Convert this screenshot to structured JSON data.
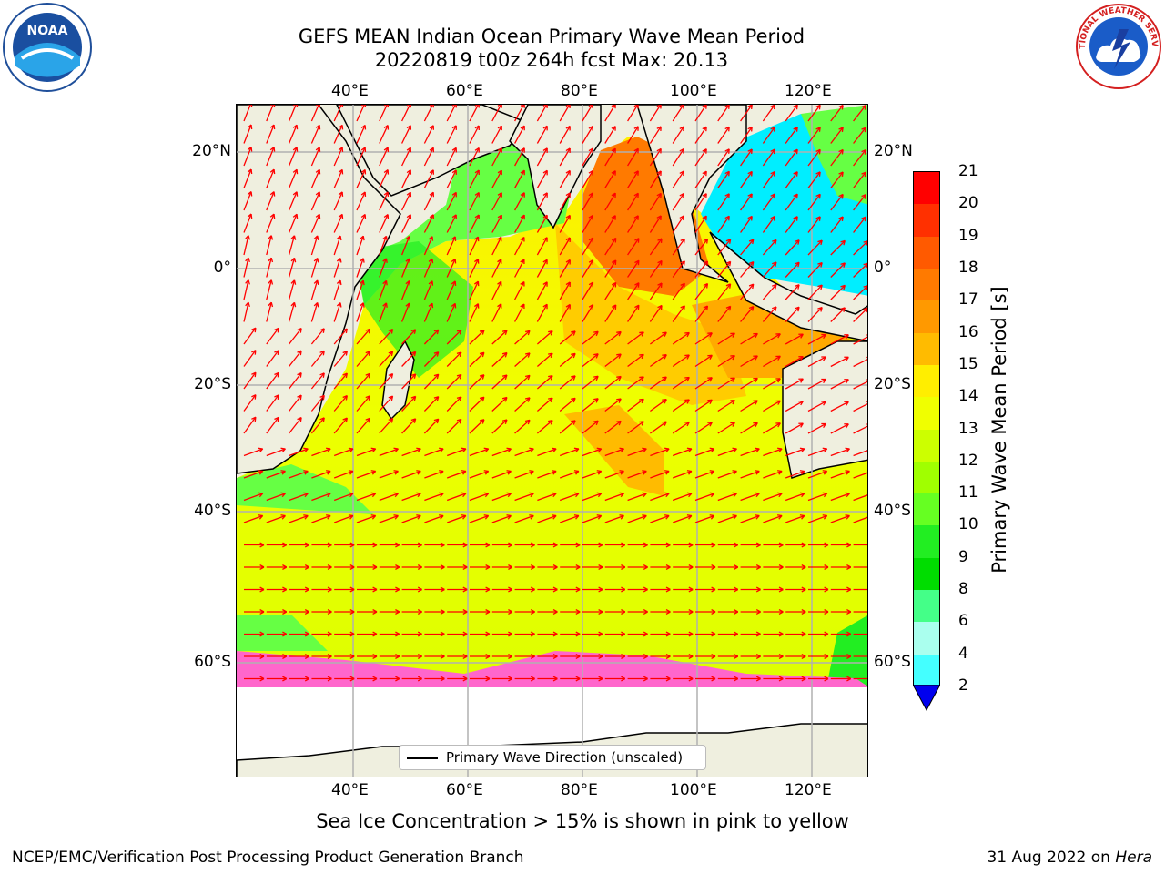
{
  "title_line1": "GEFS MEAN Indian Ocean Primary Wave Mean Period",
  "title_line2": "20220819 t00z 264h fcst   Max: 20.13",
  "top_axis_labels": [
    "40°E",
    "60°E",
    "80°E",
    "100°E",
    "120°E"
  ],
  "bottom_axis_labels": [
    "40°E",
    "60°E",
    "80°E",
    "100°E",
    "120°E"
  ],
  "left_axis_labels": [
    "20°N",
    "0°",
    "20°S",
    "40°S",
    "60°S"
  ],
  "right_axis_labels": [
    "20°N",
    "0°",
    "20°S",
    "40°S",
    "60°S"
  ],
  "colorbar": {
    "title": "Primary Wave Mean Period [s]",
    "tick_labels": [
      "21",
      "20",
      "19",
      "18",
      "17",
      "16",
      "15",
      "14",
      "13",
      "12",
      "11",
      "10",
      "9",
      "8",
      "6",
      "4",
      "2"
    ],
    "colors": [
      "#ff0000",
      "#ff3000",
      "#ff5a00",
      "#ff7a00",
      "#ff9900",
      "#ffbb00",
      "#ffee00",
      "#f0ff00",
      "#ccff00",
      "#a0ff00",
      "#66ff22",
      "#22ee22",
      "#00dd00",
      "#44ff88",
      "#aaffee",
      "#44ffff",
      "#00eeff",
      "#0099ff",
      "#0000ee"
    ]
  },
  "legend_label": "Primary Wave Direction (unscaled)",
  "subtitle": "Sea Ice Concentration > 15% is shown in pink to yellow",
  "footer_left": "NCEP/EMC/Verification Post Processing Product Generation Branch",
  "footer_right_text": "31 Aug 2022 on ",
  "footer_right_italic": "Hera",
  "logos": {
    "left": "NOAA",
    "right": "NATIONAL WEATHER SERVICE"
  }
}
